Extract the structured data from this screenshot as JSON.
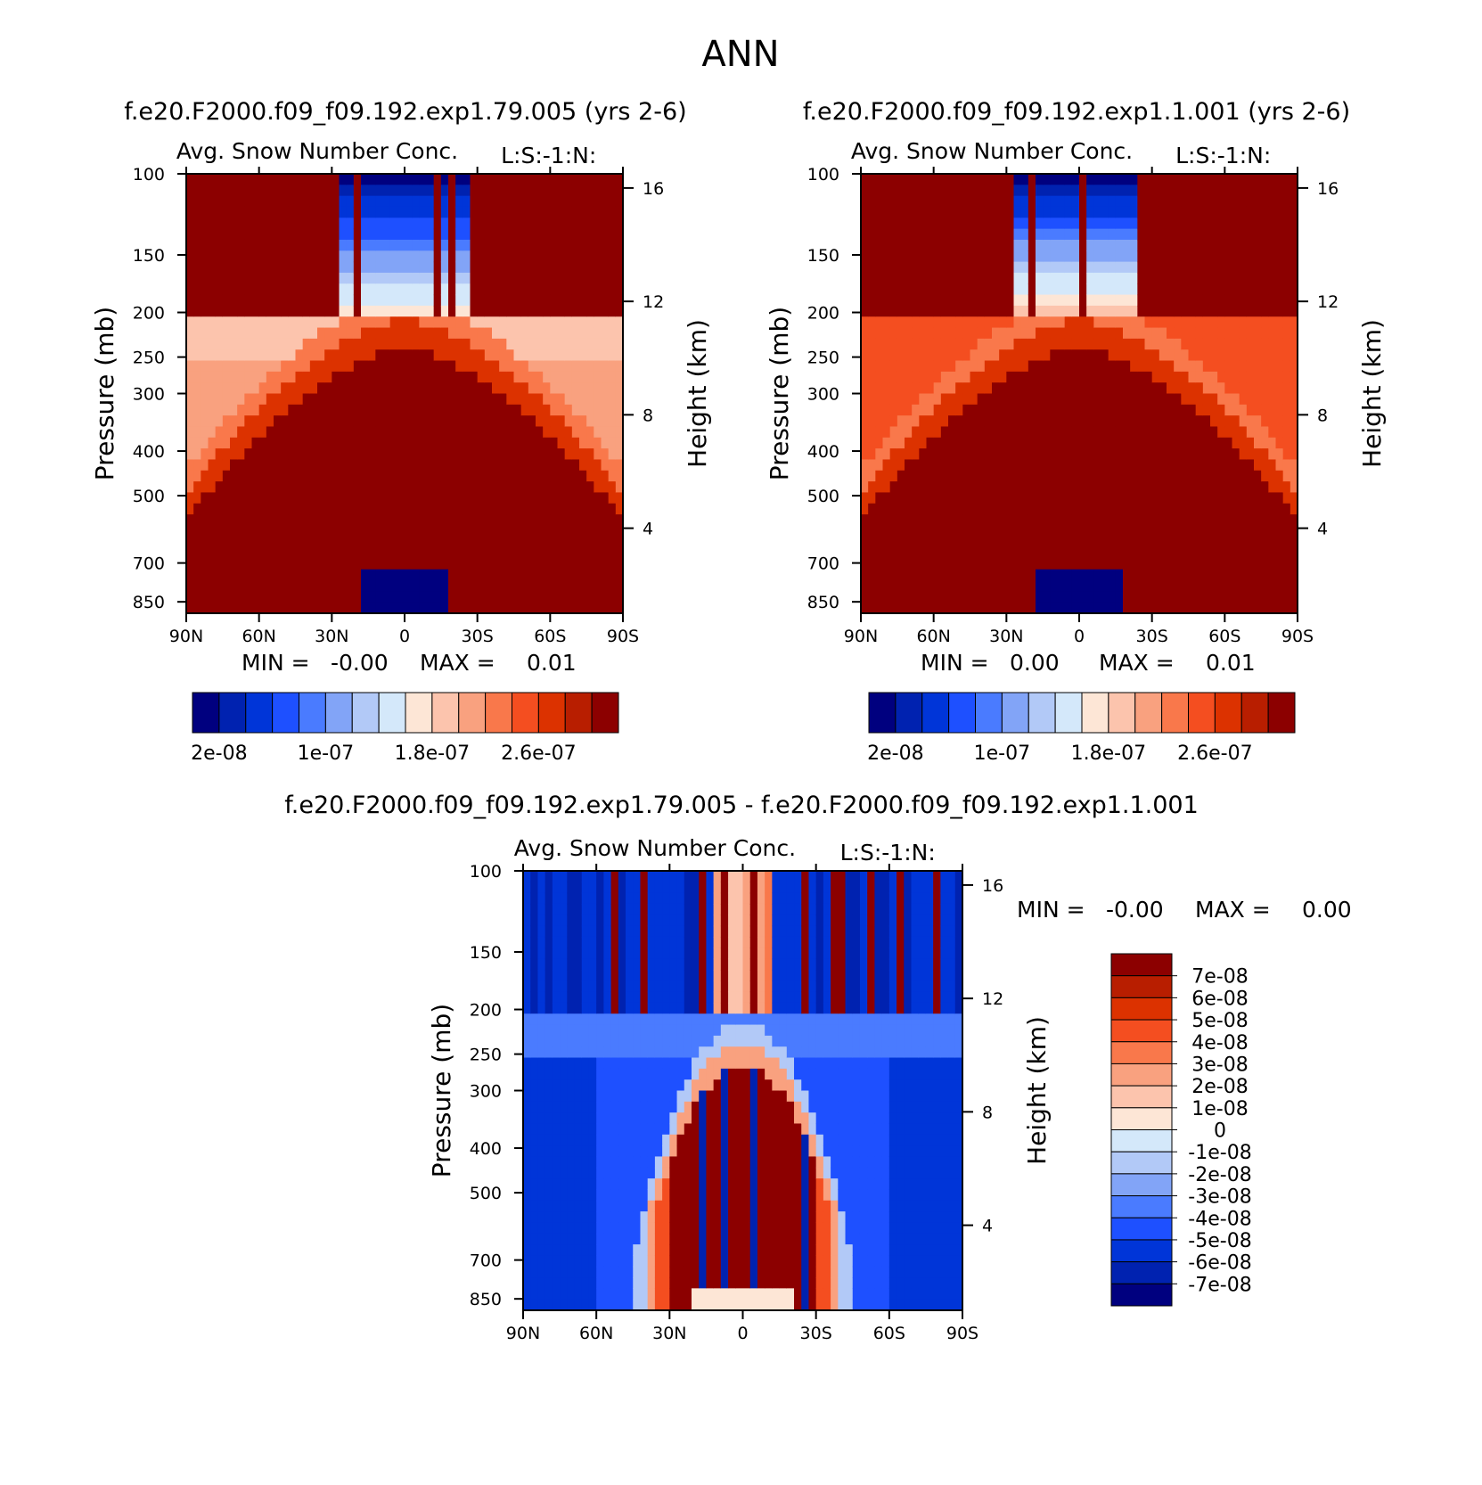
{
  "page": {
    "title": "ANN",
    "colors": {
      "axis": "#000000",
      "background": "#ffffff"
    }
  },
  "palette": [
    "#00007f",
    "#0022b0",
    "#0035d8",
    "#1e50ff",
    "#4a7bff",
    "#82a4f7",
    "#b2c9f7",
    "#d4e8fa",
    "#fde6d6",
    "#fcc4ad",
    "#f9a17f",
    "#f9784b",
    "#f44e20",
    "#dc3200",
    "#b81e00",
    "#8c0000"
  ],
  "chart_data": [
    {
      "id": "case1",
      "type": "heatmap",
      "case": "f.e20.F2000.f09_f09.192.exp1.79.005 (yrs 2-6)",
      "title": "Avg. Snow Number Conc.",
      "tag": "L:S:-1:N:",
      "ylabel": "Pressure (mb)",
      "y2label": "Height (km)",
      "xticks": [
        "90N",
        "60N",
        "30N",
        "0",
        "30S",
        "60S",
        "90S"
      ],
      "yticks": [
        "100",
        "150",
        "200",
        "250",
        "300",
        "400",
        "500",
        "700",
        "850"
      ],
      "y2ticks": [
        "16",
        "12",
        "8",
        "4"
      ],
      "min_label": "MIN =",
      "min_value": "-0.00",
      "max_label": "MAX =",
      "max_value": "0.01",
      "colorbar_labels": [
        "2e-08",
        "1e-07",
        "1.8e-07",
        "2.6e-07"
      ],
      "x_range": [
        "90N",
        "90S"
      ],
      "y_range_mb": [
        100,
        900
      ],
      "y2_range_km": [
        1,
        16.5
      ],
      "log_pressure": true
    },
    {
      "id": "case2",
      "type": "heatmap",
      "case": "f.e20.F2000.f09_f09.192.exp1.1.001 (yrs 2-6)",
      "title": "Avg. Snow Number Conc.",
      "tag": "L:S:-1:N:",
      "ylabel": "Pressure (mb)",
      "y2label": "Height (km)",
      "xticks": [
        "90N",
        "60N",
        "30N",
        "0",
        "30S",
        "60S",
        "90S"
      ],
      "yticks": [
        "100",
        "150",
        "200",
        "250",
        "300",
        "400",
        "500",
        "700",
        "850"
      ],
      "y2ticks": [
        "16",
        "12",
        "8",
        "4"
      ],
      "min_label": "MIN =",
      "min_value": "0.00",
      "max_label": "MAX =",
      "max_value": "0.01",
      "colorbar_labels": [
        "2e-08",
        "1e-07",
        "1.8e-07",
        "2.6e-07"
      ],
      "x_range": [
        "90N",
        "90S"
      ],
      "y_range_mb": [
        100,
        900
      ],
      "y2_range_km": [
        1,
        16.5
      ],
      "log_pressure": true
    },
    {
      "id": "diff",
      "type": "heatmap",
      "case": "f.e20.F2000.f09_f09.192.exp1.79.005 - f.e20.F2000.f09_f09.192.exp1.1.001",
      "title": "Avg. Snow Number Conc.",
      "tag": "L:S:-1:N:",
      "ylabel": "Pressure (mb)",
      "y2label": "Height (km)",
      "xticks": [
        "90N",
        "60N",
        "30N",
        "0",
        "30S",
        "60S",
        "90S"
      ],
      "yticks": [
        "100",
        "150",
        "200",
        "250",
        "300",
        "400",
        "500",
        "700",
        "850"
      ],
      "y2ticks": [
        "16",
        "12",
        "8",
        "4"
      ],
      "min_label": "MIN =",
      "min_value": "-0.00",
      "max_label": "MAX =",
      "max_value": "0.00",
      "colorbar_labels": [
        "7e-08",
        "6e-08",
        "5e-08",
        "4e-08",
        "3e-08",
        "2e-08",
        "1e-08",
        "0",
        "-1e-08",
        "-2e-08",
        "-3e-08",
        "-4e-08",
        "-5e-08",
        "-6e-08",
        "-7e-08"
      ],
      "x_range": [
        "90N",
        "90S"
      ],
      "y_range_mb": [
        100,
        900
      ],
      "y2_range_km": [
        1,
        16.5
      ],
      "log_pressure": true
    }
  ]
}
